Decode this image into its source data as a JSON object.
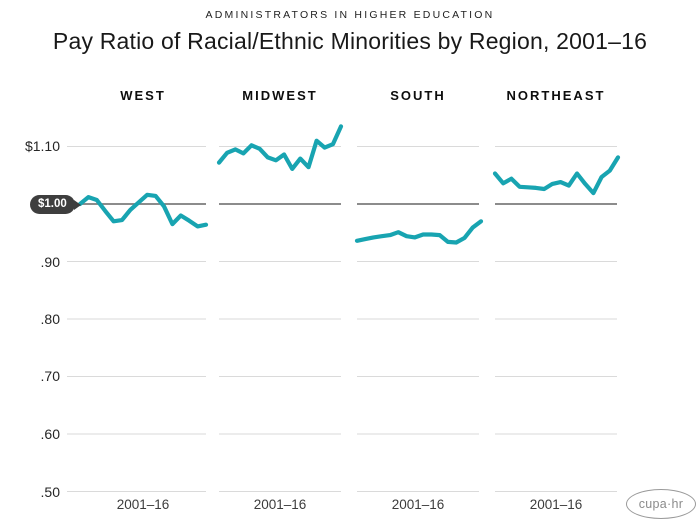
{
  "header": {
    "kicker": "ADMINISTRATORS IN HIGHER EDUCATION",
    "title": "Pay Ratio of Racial/Ethnic Minorities by Region, 2001–16"
  },
  "logo_text": "cupa·hr",
  "chart_data": {
    "type": "line",
    "title": "Pay Ratio of Racial/Ethnic Minorities by Region, 2001–16",
    "subtitle": "ADMINISTRATORS IN HIGHER EDUCATION",
    "layout_hint": "four small-multiple line panels sharing one y axis, grid on, no legend",
    "years": [
      2001,
      2002,
      2003,
      2004,
      2005,
      2006,
      2007,
      2008,
      2009,
      2010,
      2011,
      2012,
      2013,
      2014,
      2015,
      2016
    ],
    "panels": [
      {
        "name": "WEST",
        "x_label": "2001–16",
        "values": [
          1.0,
          1.012,
          1.007,
          0.988,
          0.97,
          0.972,
          0.99,
          1.003,
          1.016,
          1.014,
          0.996,
          0.965,
          0.98,
          0.971,
          0.961,
          0.964
        ]
      },
      {
        "name": "MIDWEST",
        "x_label": "2001–16",
        "values": [
          1.072,
          1.089,
          1.095,
          1.088,
          1.102,
          1.096,
          1.081,
          1.076,
          1.086,
          1.061,
          1.079,
          1.064,
          1.11,
          1.098,
          1.104,
          1.135
        ]
      },
      {
        "name": "SOUTH",
        "x_label": "2001–16",
        "values": [
          0.936,
          0.939,
          0.942,
          0.944,
          0.946,
          0.951,
          0.944,
          0.942,
          0.947,
          0.947,
          0.946,
          0.934,
          0.933,
          0.941,
          0.959,
          0.97
        ]
      },
      {
        "name": "NORTHEAST",
        "x_label": "2001–16",
        "values": [
          1.053,
          1.036,
          1.044,
          1.03,
          1.029,
          1.028,
          1.026,
          1.035,
          1.038,
          1.032,
          1.053,
          1.035,
          1.019,
          1.047,
          1.058,
          1.081
        ]
      }
    ],
    "y_axis": {
      "tick_labels": [
        "$1.10",
        ".90",
        ".80",
        ".70",
        ".60",
        ".50"
      ],
      "tick_values": [
        1.1,
        0.9,
        0.8,
        0.7,
        0.6,
        0.5
      ],
      "reference_label": "$1.00",
      "reference_value": 1.0,
      "ylim": [
        0.5,
        1.15
      ]
    },
    "colors": {
      "line": "#18a4b1",
      "reference_line": "#7c7c7c",
      "gridline": "#dadada",
      "badge_bg": "#3e3e3e",
      "badge_text": "#ffffff"
    }
  }
}
